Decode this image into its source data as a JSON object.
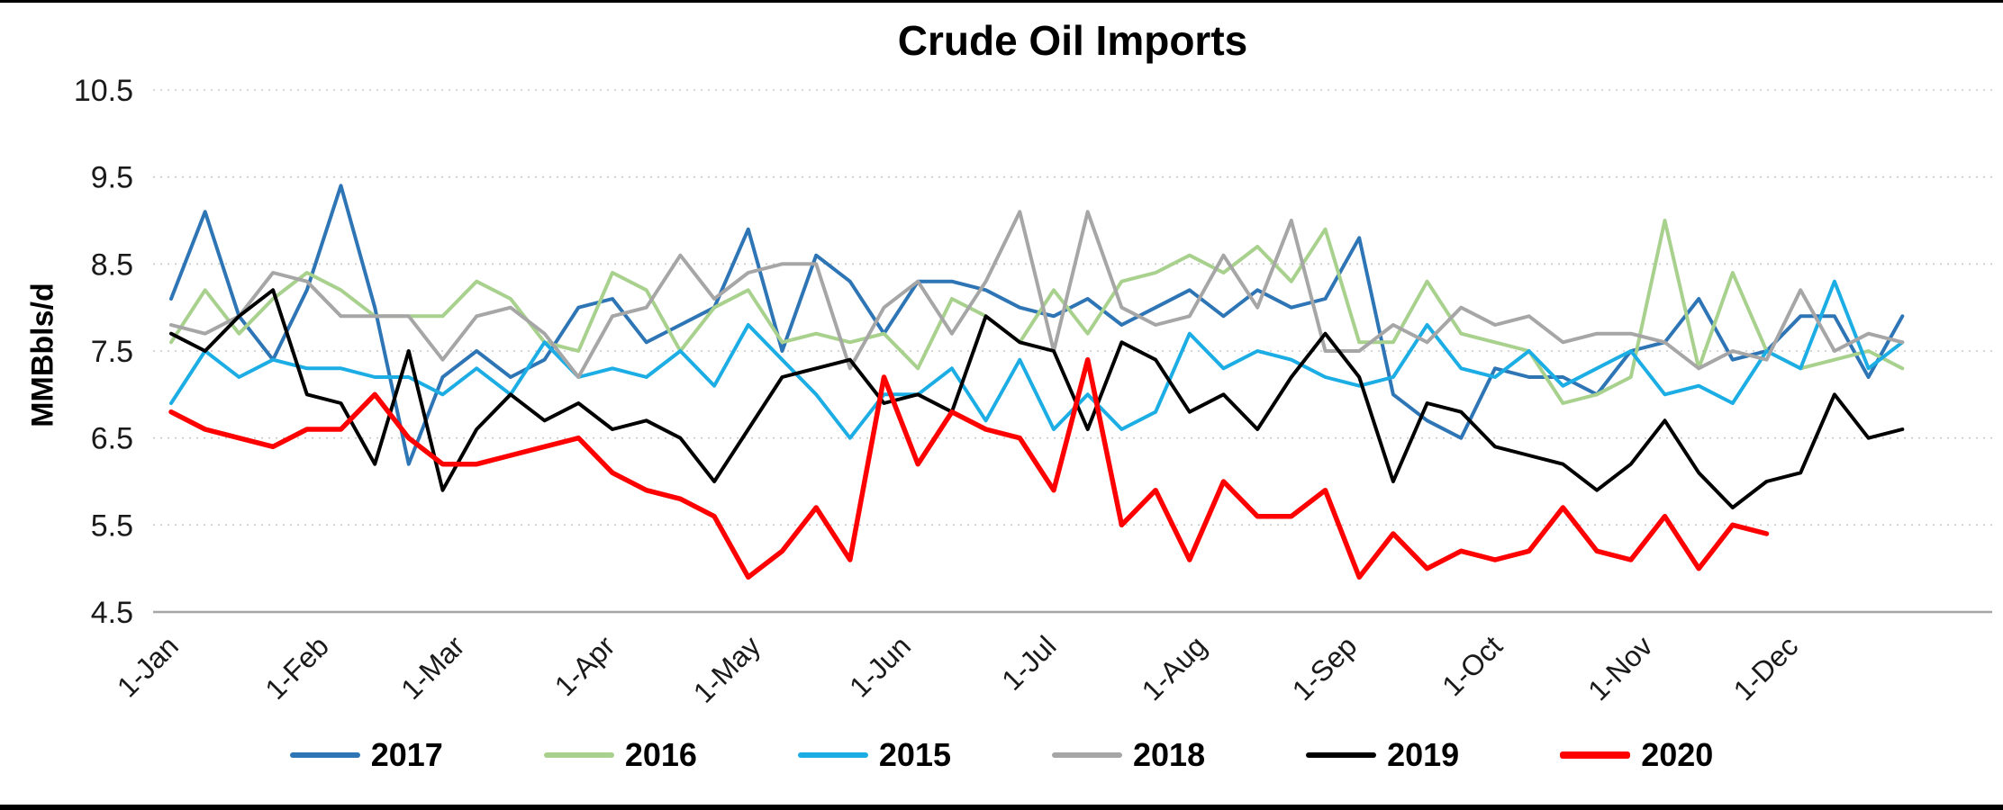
{
  "chart_data": {
    "type": "line",
    "title": "Crude Oil Imports",
    "ylabel": "MMBbls/d",
    "ylim": [
      4.5,
      10.5
    ],
    "y_ticks": [
      4.5,
      5.5,
      6.5,
      7.5,
      8.5,
      9.5,
      10.5
    ],
    "grid": "horizontal-dotted",
    "legend_position": "bottom",
    "x_unit": "day_of_year",
    "points_start_day": 1,
    "points_interval_days": 7,
    "x_ticks": [
      {
        "label": "1-Jan",
        "day": 1
      },
      {
        "label": "1-Feb",
        "day": 32
      },
      {
        "label": "1-Mar",
        "day": 60
      },
      {
        "label": "1-Apr",
        "day": 91
      },
      {
        "label": "1-May",
        "day": 121
      },
      {
        "label": "1-Jun",
        "day": 152
      },
      {
        "label": "1-Jul",
        "day": 182
      },
      {
        "label": "1-Aug",
        "day": 213
      },
      {
        "label": "1-Sep",
        "day": 244
      },
      {
        "label": "1-Oct",
        "day": 274
      },
      {
        "label": "1-Nov",
        "day": 305
      },
      {
        "label": "1-Dec",
        "day": 335
      }
    ],
    "series": [
      {
        "name": "2017",
        "color": "#2E75B6",
        "width": 4,
        "values": [
          8.1,
          9.1,
          7.9,
          7.4,
          8.2,
          9.4,
          8.0,
          6.2,
          7.2,
          7.5,
          7.2,
          7.4,
          8.0,
          8.1,
          7.6,
          7.8,
          8.0,
          8.9,
          7.5,
          8.6,
          8.3,
          7.7,
          8.3,
          8.3,
          8.2,
          8.0,
          7.9,
          8.1,
          7.8,
          8.0,
          8.2,
          7.9,
          8.2,
          8.0,
          8.1,
          8.8,
          7.0,
          6.7,
          6.5,
          7.3,
          7.2,
          7.2,
          7.0,
          7.5,
          7.6,
          8.1,
          7.4,
          7.5,
          7.9,
          7.9,
          7.2,
          7.9
        ]
      },
      {
        "name": "2016",
        "color": "#A9D18E",
        "width": 4,
        "values": [
          7.6,
          8.2,
          7.7,
          8.1,
          8.4,
          8.2,
          7.9,
          7.9,
          7.9,
          8.3,
          8.1,
          7.6,
          7.5,
          8.4,
          8.2,
          7.5,
          8.0,
          8.2,
          7.6,
          7.7,
          7.6,
          7.7,
          7.3,
          8.1,
          7.9,
          7.6,
          8.2,
          7.7,
          8.3,
          8.4,
          8.6,
          8.4,
          8.7,
          8.3,
          8.9,
          7.6,
          7.6,
          8.3,
          7.7,
          7.6,
          7.5,
          6.9,
          7.0,
          7.2,
          9.0,
          7.3,
          8.4,
          7.5,
          7.3,
          7.4,
          7.5,
          7.3
        ]
      },
      {
        "name": "2015",
        "color": "#1CADE4",
        "width": 4,
        "values": [
          6.9,
          7.5,
          7.2,
          7.4,
          7.3,
          7.3,
          7.2,
          7.2,
          7.0,
          7.3,
          7.0,
          7.6,
          7.2,
          7.3,
          7.2,
          7.5,
          7.1,
          7.8,
          7.4,
          7.0,
          6.5,
          7.0,
          7.0,
          7.3,
          6.7,
          7.4,
          6.6,
          7.0,
          6.6,
          6.8,
          7.7,
          7.3,
          7.5,
          7.4,
          7.2,
          7.1,
          7.2,
          7.8,
          7.3,
          7.2,
          7.5,
          7.1,
          7.3,
          7.5,
          7.0,
          7.1,
          6.9,
          7.5,
          7.3,
          8.3,
          7.3,
          7.6
        ]
      },
      {
        "name": "2018",
        "color": "#A6A6A6",
        "width": 4,
        "values": [
          7.8,
          7.7,
          7.9,
          8.4,
          8.3,
          7.9,
          7.9,
          7.9,
          7.4,
          7.9,
          8.0,
          7.7,
          7.2,
          7.9,
          8.0,
          8.6,
          8.1,
          8.4,
          8.5,
          8.5,
          7.3,
          8.0,
          8.3,
          7.7,
          8.3,
          9.1,
          7.5,
          9.1,
          8.0,
          7.8,
          7.9,
          8.6,
          8.0,
          9.0,
          7.5,
          7.5,
          7.8,
          7.6,
          8.0,
          7.8,
          7.9,
          7.6,
          7.7,
          7.7,
          7.6,
          7.3,
          7.5,
          7.4,
          8.2,
          7.5,
          7.7,
          7.6
        ]
      },
      {
        "name": "2019",
        "color": "#000000",
        "width": 4,
        "values": [
          7.7,
          7.5,
          7.9,
          8.2,
          7.0,
          6.9,
          6.2,
          7.5,
          5.9,
          6.6,
          7.0,
          6.7,
          6.9,
          6.6,
          6.7,
          6.5,
          6.0,
          6.6,
          7.2,
          7.3,
          7.4,
          6.9,
          7.0,
          6.8,
          7.9,
          7.6,
          7.5,
          6.6,
          7.6,
          7.4,
          6.8,
          7.0,
          6.6,
          7.2,
          7.7,
          7.2,
          6.0,
          6.9,
          6.8,
          6.4,
          6.3,
          6.2,
          5.9,
          6.2,
          6.7,
          6.1,
          5.7,
          6.0,
          6.1,
          7.0,
          6.5,
          6.6
        ]
      },
      {
        "name": "2020",
        "color": "#FF0000",
        "width": 5.5,
        "values": [
          6.8,
          6.6,
          6.5,
          6.4,
          6.6,
          6.6,
          7.0,
          6.5,
          6.2,
          6.2,
          6.3,
          6.4,
          6.5,
          6.1,
          5.9,
          5.8,
          5.6,
          4.9,
          5.2,
          5.7,
          5.1,
          7.2,
          6.2,
          6.8,
          6.6,
          6.5,
          5.9,
          7.4,
          5.5,
          5.9,
          5.1,
          6.0,
          5.6,
          5.6,
          5.9,
          4.9,
          5.4,
          5.0,
          5.2,
          5.1,
          5.2,
          5.7,
          5.2,
          5.1,
          5.6,
          5.0,
          5.5,
          5.4
        ]
      }
    ]
  }
}
